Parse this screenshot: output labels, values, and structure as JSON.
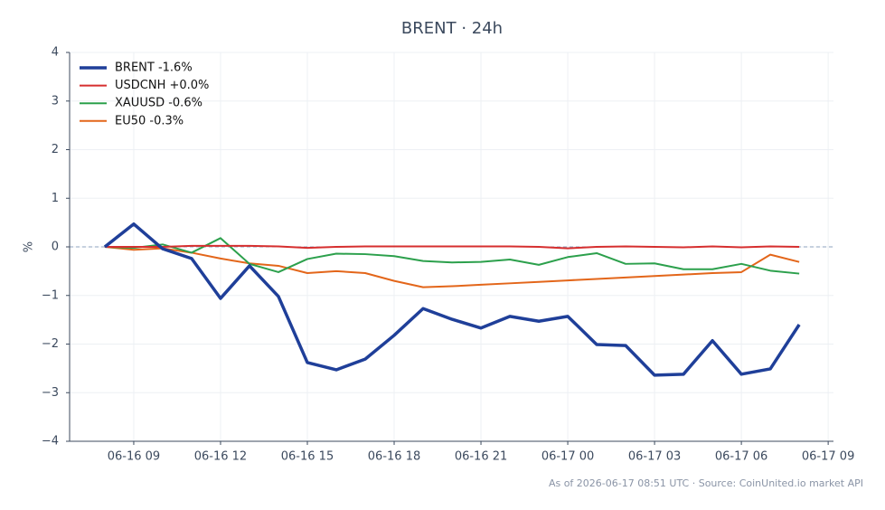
{
  "chart_data": {
    "type": "line",
    "title": "BRENT · 24h",
    "ylabel": "%",
    "note": "As of 2026-06-17 08:51 UTC · Source: CoinUnited.io market API",
    "x": [
      "06-16 08",
      "06-16 09",
      "06-16 10",
      "06-16 11",
      "06-16 12",
      "06-16 13",
      "06-16 14",
      "06-16 15",
      "06-16 16",
      "06-16 17",
      "06-16 18",
      "06-16 19",
      "06-16 20",
      "06-16 21",
      "06-16 22",
      "06-16 23",
      "06-17 00",
      "06-17 01",
      "06-17 02",
      "06-17 03",
      "06-17 04",
      "06-17 05",
      "06-17 06",
      "06-17 07",
      "06-17 08"
    ],
    "series": [
      {
        "name": "BRENT -1.6%",
        "color": "#1f3f99",
        "linewidth": 3.5,
        "values": [
          0,
          0.47,
          -0.04,
          -0.24,
          -1.06,
          -0.39,
          -1.02,
          -2.38,
          -2.53,
          -2.31,
          -1.82,
          -1.27,
          -1.49,
          -1.67,
          -1.43,
          -1.53,
          -1.43,
          -2.01,
          -2.03,
          -2.64,
          -2.62,
          -1.93,
          -2.62,
          -2.51,
          -1.6
        ]
      },
      {
        "name": "USDCNH +0.0%",
        "color": "#d62f2f",
        "linewidth": 2,
        "values": [
          0,
          0,
          0,
          0.02,
          0.02,
          0.02,
          0.01,
          -0.02,
          0,
          0.01,
          0.01,
          0.01,
          0.01,
          0.01,
          0.01,
          0,
          -0.03,
          0,
          0.01,
          0,
          -0.01,
          0.01,
          -0.01,
          0.01,
          0
        ]
      },
      {
        "name": "XAUUSD -0.6%",
        "color": "#2ca04c",
        "linewidth": 2,
        "values": [
          0,
          -0.02,
          0.05,
          -0.12,
          0.18,
          -0.35,
          -0.52,
          -0.25,
          -0.14,
          -0.15,
          -0.19,
          -0.29,
          -0.32,
          -0.31,
          -0.26,
          -0.37,
          -0.21,
          -0.13,
          -0.35,
          -0.34,
          -0.46,
          -0.46,
          -0.35,
          -0.49,
          -0.55
        ]
      },
      {
        "name": "EU50 -0.3%",
        "color": "#e3661a",
        "linewidth": 2,
        "values": [
          0,
          -0.06,
          -0.03,
          -0.12,
          -0.24,
          -0.34,
          -0.39,
          -0.54,
          -0.5,
          -0.54,
          -0.7,
          -0.83,
          -0.81,
          -0.78,
          -0.75,
          -0.72,
          -0.69,
          -0.66,
          -0.63,
          -0.6,
          -0.57,
          -0.54,
          -0.52,
          -0.16,
          -0.31
        ]
      }
    ],
    "xlim": [
      "06-16 06:47",
      "06-17 09:11"
    ],
    "xticks": [
      "06-16 09",
      "06-16 12",
      "06-16 15",
      "06-16 18",
      "06-16 21",
      "06-17 00",
      "06-17 03",
      "06-17 06",
      "06-17 09"
    ],
    "ylim": [
      -4,
      4
    ],
    "yticks": [
      {
        "value": -4,
        "label": "−4"
      },
      {
        "value": -3,
        "label": "−3"
      },
      {
        "value": -2,
        "label": "−2"
      },
      {
        "value": -1,
        "label": "−1"
      },
      0,
      1,
      2,
      3,
      4
    ],
    "grid": true,
    "legend": "upper left"
  }
}
